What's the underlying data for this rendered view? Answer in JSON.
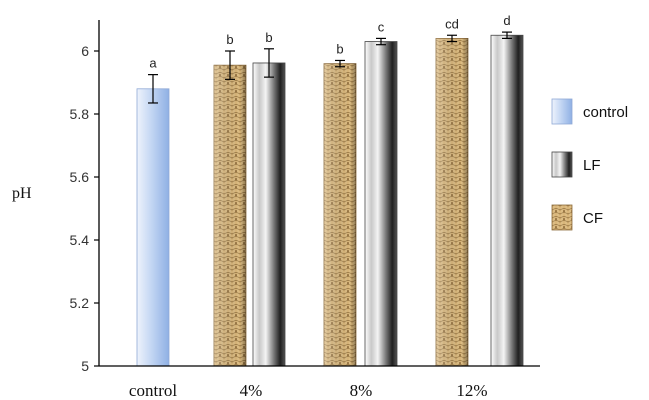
{
  "chart_data": {
    "type": "bar",
    "title": "",
    "xlabel": "",
    "ylabel": "pH",
    "ylim": [
      5,
      6.1
    ],
    "yticks": [
      5,
      5.2,
      5.4,
      5.6,
      5.8,
      6
    ],
    "grid": false,
    "legend_position": "right",
    "categories": [
      "control",
      "4%",
      "8%",
      "12%"
    ],
    "series": [
      {
        "name": "control",
        "color": "#c7d9f4",
        "values": [
          5.88,
          null,
          null,
          null
        ],
        "errors": [
          0.045,
          null,
          null,
          null
        ],
        "letters": [
          "a",
          null,
          null,
          null
        ]
      },
      {
        "name": "CF",
        "color": "#c9a56a",
        "values": [
          null,
          5.955,
          5.96,
          6.04
        ],
        "errors": [
          null,
          0.045,
          0.01,
          0.01
        ],
        "letters": [
          null,
          "b",
          "b",
          "cd"
        ]
      },
      {
        "name": "LF",
        "color": "#8a8a8a",
        "values": [
          null,
          5.962,
          6.03,
          6.05
        ],
        "errors": [
          null,
          0.045,
          0.01,
          0.01
        ],
        "letters": [
          null,
          "b",
          "c",
          "d"
        ]
      }
    ],
    "legend": [
      {
        "name": "control",
        "pattern": "control"
      },
      {
        "name": "LF",
        "pattern": "LF"
      },
      {
        "name": "CF",
        "pattern": "CF"
      }
    ]
  }
}
